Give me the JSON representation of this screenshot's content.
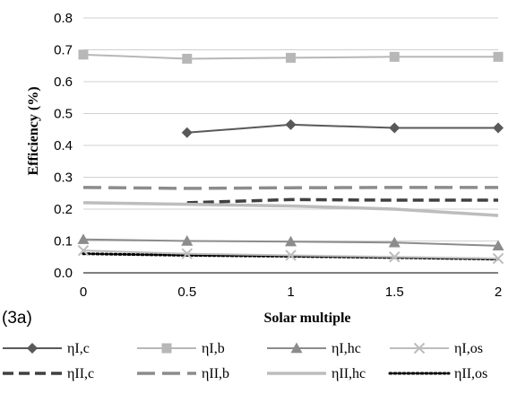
{
  "chart_data": {
    "type": "line",
    "panel_label": "(3a)",
    "xlabel": "Solar multiple",
    "ylabel": "Efficiency (%)",
    "x": [
      0,
      0.5,
      1,
      1.5,
      2
    ],
    "x_ticks": [
      "0",
      "0.5",
      "1",
      "1.5",
      "2"
    ],
    "ylim": [
      0,
      0.8
    ],
    "y_ticks": [
      "0.0",
      "0.1",
      "0.2",
      "0.3",
      "0.4",
      "0.5",
      "0.6",
      "0.7",
      "0.8"
    ],
    "grid": "horizontal",
    "legend_position": "bottom",
    "series": [
      {
        "name": "ηI,c",
        "values": [
          null,
          0.44,
          0.465,
          0.455,
          0.455
        ],
        "color": "#595959",
        "marker": "diamond",
        "dash": "solid"
      },
      {
        "name": "ηI,b",
        "values": [
          0.685,
          0.672,
          0.675,
          0.678,
          0.678
        ],
        "color": "#b7b7b7",
        "marker": "square",
        "dash": "solid"
      },
      {
        "name": "ηI,hc",
        "values": [
          0.105,
          0.1,
          0.098,
          0.095,
          0.085
        ],
        "color": "#8c8c8c",
        "marker": "triangle",
        "dash": "solid"
      },
      {
        "name": "ηI,os",
        "values": [
          0.07,
          0.06,
          0.055,
          0.05,
          0.045
        ],
        "color": "#bdbdbd",
        "marker": "x",
        "dash": "solid"
      },
      {
        "name": "ηII,c",
        "values": [
          null,
          0.22,
          0.23,
          0.228,
          0.228
        ],
        "color": "#404040",
        "marker": "none",
        "dash": "dashed"
      },
      {
        "name": "ηII,b",
        "values": [
          0.268,
          0.265,
          0.267,
          0.268,
          0.268
        ],
        "color": "#8c8c8c",
        "marker": "none",
        "dash": "longdash"
      },
      {
        "name": "ηII,hc",
        "values": [
          0.22,
          0.215,
          0.21,
          0.2,
          0.18
        ],
        "color": "#bdbdbd",
        "marker": "none",
        "dash": "solid"
      },
      {
        "name": "ηII,os",
        "values": [
          0.06,
          0.055,
          0.052,
          0.048,
          0.043
        ],
        "color": "#000000",
        "marker": "none",
        "dash": "dotted"
      }
    ]
  }
}
